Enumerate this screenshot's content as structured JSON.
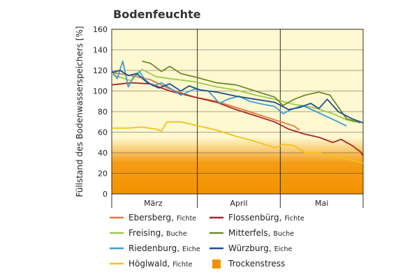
{
  "chart_data": {
    "type": "line",
    "title": "Bodenfeuchte",
    "xlabel": "",
    "ylabel": "Füllstand des Bodenwasserspeichers [%]",
    "x_range": [
      "2020-03-01",
      "2020-05-31"
    ],
    "x_unit": "date",
    "ylim": [
      0,
      160
    ],
    "y_ticks": [
      0,
      20,
      40,
      60,
      80,
      100,
      120,
      140,
      160
    ],
    "x_tick_labels": [
      {
        "label": "März",
        "date": "2020-03-16"
      },
      {
        "label": "April",
        "date": "2020-04-16"
      },
      {
        "label": "Mai",
        "date": "2020-05-16"
      }
    ],
    "x_gridlines": [
      "2020-04-01",
      "2020-05-01"
    ],
    "grid": true,
    "legend_position": "bottom",
    "stress_band": {
      "name": "Trockenstress",
      "range": [
        0,
        40
      ],
      "color": "#f39200"
    },
    "series": [
      {
        "name": "Ebersberg",
        "species": "Fichte",
        "color": "#e2783c",
        "points": [
          [
            "2020-03-01",
            118
          ],
          [
            "2020-03-08",
            115
          ],
          [
            "2020-03-15",
            111
          ],
          [
            "2020-03-22",
            102
          ],
          [
            "2020-03-31",
            94
          ],
          [
            "2020-04-08",
            90
          ],
          [
            "2020-04-15",
            84
          ],
          [
            "2020-04-22",
            78
          ],
          [
            "2020-04-29",
            72
          ],
          [
            "2020-05-06",
            66
          ],
          [
            "2020-05-08",
            62
          ]
        ]
      },
      {
        "name": "Flossenbürg",
        "species": "Fichte",
        "color": "#a8262d",
        "points": [
          [
            "2020-03-01",
            106
          ],
          [
            "2020-03-08",
            108
          ],
          [
            "2020-03-15",
            107
          ],
          [
            "2020-03-22",
            100
          ],
          [
            "2020-03-31",
            94
          ],
          [
            "2020-04-08",
            89
          ],
          [
            "2020-04-15",
            82
          ],
          [
            "2020-04-22",
            76
          ],
          [
            "2020-04-29",
            70
          ],
          [
            "2020-05-04",
            63
          ],
          [
            "2020-05-10",
            58
          ],
          [
            "2020-05-15",
            55
          ],
          [
            "2020-05-20",
            50
          ],
          [
            "2020-05-23",
            53
          ],
          [
            "2020-05-27",
            47
          ],
          [
            "2020-05-30",
            41
          ],
          [
            "2020-05-31",
            37
          ]
        ]
      },
      {
        "name": "Freising",
        "species": "Buche",
        "color": "#9ccb4a",
        "points": [
          [
            "2020-03-01",
            116
          ],
          [
            "2020-03-08",
            110
          ],
          [
            "2020-03-12",
            121
          ],
          [
            "2020-03-17",
            114
          ],
          [
            "2020-03-22",
            112
          ],
          [
            "2020-03-31",
            109
          ],
          [
            "2020-04-08",
            104
          ],
          [
            "2020-04-15",
            101
          ],
          [
            "2020-04-22",
            96
          ],
          [
            "2020-04-29",
            92
          ],
          [
            "2020-05-06",
            87
          ],
          [
            "2020-05-13",
            84
          ],
          [
            "2020-05-20",
            78
          ],
          [
            "2020-05-25",
            72
          ],
          [
            "2020-05-28",
            70
          ]
        ]
      },
      {
        "name": "Mitterfels",
        "species": "Buche",
        "color": "#6d8b2e",
        "points": [
          [
            "2020-03-12",
            129
          ],
          [
            "2020-03-15",
            127
          ],
          [
            "2020-03-19",
            119
          ],
          [
            "2020-03-22",
            124
          ],
          [
            "2020-03-26",
            117
          ],
          [
            "2020-04-01",
            113
          ],
          [
            "2020-04-08",
            108
          ],
          [
            "2020-04-15",
            106
          ],
          [
            "2020-04-22",
            100
          ],
          [
            "2020-04-29",
            94
          ],
          [
            "2020-05-02",
            86
          ],
          [
            "2020-05-06",
            92
          ],
          [
            "2020-05-10",
            96
          ],
          [
            "2020-05-15",
            99
          ],
          [
            "2020-05-19",
            96
          ],
          [
            "2020-05-25",
            73
          ],
          [
            "2020-05-30",
            69
          ]
        ]
      },
      {
        "name": "Riedenburg",
        "species": "Eiche",
        "color": "#3c9fd6",
        "points": [
          [
            "2020-03-01",
            120
          ],
          [
            "2020-03-03",
            112
          ],
          [
            "2020-03-05",
            129
          ],
          [
            "2020-03-07",
            104
          ],
          [
            "2020-03-09",
            114
          ],
          [
            "2020-03-11",
            119
          ],
          [
            "2020-03-13",
            111
          ],
          [
            "2020-03-16",
            105
          ],
          [
            "2020-03-19",
            108
          ],
          [
            "2020-03-22",
            103
          ],
          [
            "2020-03-26",
            96
          ],
          [
            "2020-03-31",
            102
          ],
          [
            "2020-04-05",
            100
          ],
          [
            "2020-04-09",
            88
          ],
          [
            "2020-04-12",
            92
          ],
          [
            "2020-04-16",
            95
          ],
          [
            "2020-04-20",
            90
          ],
          [
            "2020-04-25",
            87
          ],
          [
            "2020-04-29",
            85
          ],
          [
            "2020-05-02",
            78
          ],
          [
            "2020-05-05",
            82
          ],
          [
            "2020-05-09",
            86
          ],
          [
            "2020-05-14",
            80
          ],
          [
            "2020-05-18",
            75
          ],
          [
            "2020-05-22",
            70
          ],
          [
            "2020-05-25",
            66
          ]
        ]
      },
      {
        "name": "Würzburg",
        "species": "Eiche",
        "color": "#1e4f8c",
        "points": [
          [
            "2020-03-01",
            118
          ],
          [
            "2020-03-04",
            120
          ],
          [
            "2020-03-07",
            115
          ],
          [
            "2020-03-10",
            117
          ],
          [
            "2020-03-14",
            108
          ],
          [
            "2020-03-18",
            103
          ],
          [
            "2020-03-22",
            107
          ],
          [
            "2020-03-26",
            100
          ],
          [
            "2020-03-29",
            105
          ],
          [
            "2020-04-02",
            101
          ],
          [
            "2020-04-08",
            99
          ],
          [
            "2020-04-15",
            95
          ],
          [
            "2020-04-22",
            92
          ],
          [
            "2020-04-29",
            89
          ],
          [
            "2020-05-04",
            82
          ],
          [
            "2020-05-08",
            84
          ],
          [
            "2020-05-12",
            88
          ],
          [
            "2020-05-15",
            83
          ],
          [
            "2020-05-18",
            92
          ],
          [
            "2020-05-22",
            80
          ],
          [
            "2020-05-27",
            73
          ],
          [
            "2020-05-31",
            69
          ]
        ]
      },
      {
        "name": "Höglwald",
        "species": "Fichte",
        "color": "#f2c218",
        "points": [
          [
            "2020-03-01",
            64
          ],
          [
            "2020-03-07",
            64
          ],
          [
            "2020-03-12",
            65
          ],
          [
            "2020-03-17",
            63
          ],
          [
            "2020-03-19",
            61
          ],
          [
            "2020-03-21",
            70
          ],
          [
            "2020-03-26",
            70
          ],
          [
            "2020-03-31",
            67
          ],
          [
            "2020-04-08",
            62
          ],
          [
            "2020-04-15",
            56
          ],
          [
            "2020-04-22",
            51
          ],
          [
            "2020-04-29",
            45
          ],
          [
            "2020-05-02",
            48
          ],
          [
            "2020-05-06",
            47
          ],
          [
            "2020-05-10",
            40
          ],
          [
            "2020-05-15",
            40
          ],
          [
            "2020-05-20",
            37
          ],
          [
            "2020-05-25",
            34
          ],
          [
            "2020-05-31",
            30
          ]
        ]
      }
    ]
  },
  "legend": [
    {
      "name": "Ebersberg",
      "sub": "Fichte"
    },
    {
      "name": "Flossenbürg",
      "sub": "Fichte"
    },
    {
      "name": "Freising",
      "sub": "Buche"
    },
    {
      "name": "Mitterfels",
      "sub": "Buche"
    },
    {
      "name": "Riedenburg",
      "sub": "Eiche"
    },
    {
      "name": "Würzburg",
      "sub": "Eiche"
    },
    {
      "name": "Höglwald",
      "sub": "Fichte"
    },
    {
      "name": "Trockenstress",
      "sub": ""
    }
  ]
}
